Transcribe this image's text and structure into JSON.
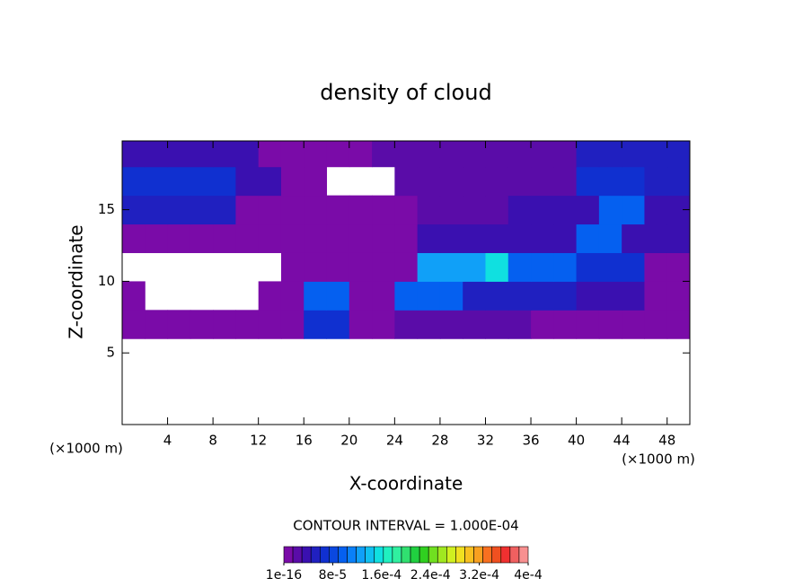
{
  "chart_data": {
    "type": "contourf",
    "title": "density of cloud",
    "x_label": "X-coordinate",
    "y_label": "Z-coordinate",
    "x_unit": "(×1000 m)",
    "note": "CONTOUR INTERVAL = 1.000E-04",
    "xlim": [
      0,
      50
    ],
    "ylim": [
      0,
      19.8
    ],
    "xticks": [
      4,
      8,
      12,
      16,
      20,
      24,
      28,
      32,
      36,
      40,
      44,
      48
    ],
    "yticks": [
      5,
      10,
      15
    ],
    "x": [
      1,
      3,
      5,
      7,
      9,
      11,
      13,
      15,
      17,
      19,
      21,
      23,
      25,
      27,
      29,
      31,
      33,
      35,
      37,
      39,
      41,
      43,
      45,
      47,
      49
    ],
    "y": [
      1,
      3,
      5,
      7,
      9,
      11,
      13,
      15,
      17,
      19
    ],
    "z": [
      [
        null,
        null,
        null,
        null,
        null,
        null,
        null,
        null,
        null,
        null,
        null,
        null,
        null,
        null,
        null,
        null,
        null,
        null,
        null,
        null,
        null,
        null,
        null,
        null,
        null
      ],
      [
        null,
        null,
        null,
        null,
        null,
        null,
        null,
        null,
        null,
        null,
        null,
        null,
        null,
        null,
        null,
        null,
        null,
        null,
        null,
        null,
        null,
        null,
        null,
        null,
        null
      ],
      [
        null,
        null,
        null,
        null,
        null,
        null,
        null,
        null,
        null,
        null,
        null,
        null,
        null,
        null,
        null,
        null,
        null,
        null,
        null,
        null,
        null,
        null,
        null,
        null,
        null
      ],
      [
        1e-06,
        1e-06,
        1e-06,
        1e-06,
        1e-06,
        1e-06,
        1e-06,
        1e-06,
        6e-05,
        6e-05,
        1e-06,
        1e-06,
        2e-05,
        2e-05,
        2e-05,
        2e-05,
        2e-05,
        2e-05,
        1e-06,
        1e-06,
        1e-06,
        1e-06,
        1e-06,
        1e-06,
        1e-06
      ],
      [
        1e-06,
        null,
        null,
        null,
        null,
        null,
        1e-06,
        1e-06,
        0.0001,
        0.0001,
        1e-06,
        1e-06,
        9e-05,
        9e-05,
        9e-05,
        5e-05,
        5e-05,
        5e-05,
        5e-05,
        5e-05,
        3e-05,
        3e-05,
        3e-05,
        1e-06,
        1e-06
      ],
      [
        null,
        null,
        null,
        null,
        null,
        null,
        null,
        1e-06,
        1e-06,
        1e-06,
        1e-06,
        1e-06,
        1e-06,
        0.00012,
        0.00012,
        0.00012,
        0.00016,
        0.0001,
        0.0001,
        0.0001,
        6e-05,
        6e-05,
        6e-05,
        1e-06,
        1e-06
      ],
      [
        1e-06,
        1e-06,
        1e-06,
        1e-06,
        1e-06,
        1e-06,
        1e-06,
        1e-06,
        1e-06,
        1e-06,
        1e-06,
        1e-06,
        1e-06,
        4e-05,
        4e-05,
        4e-05,
        4e-05,
        4e-05,
        4e-05,
        4e-05,
        0.0001,
        0.0001,
        3e-05,
        3e-05,
        3e-05
      ],
      [
        5e-05,
        5e-05,
        5e-05,
        5e-05,
        5e-05,
        1e-06,
        1e-06,
        1e-06,
        1e-06,
        1e-06,
        1e-06,
        1e-06,
        1e-06,
        2e-05,
        2e-05,
        2e-05,
        2e-05,
        4e-05,
        4e-05,
        4e-05,
        4e-05,
        0.0001,
        0.0001,
        4e-05,
        4e-05
      ],
      [
        6e-05,
        6e-05,
        6e-05,
        6e-05,
        6e-05,
        3e-05,
        3e-05,
        1e-06,
        1e-06,
        null,
        null,
        null,
        1.5e-05,
        1.5e-05,
        1.5e-05,
        1.5e-05,
        1.5e-05,
        1.5e-05,
        1.5e-05,
        1.5e-05,
        7e-05,
        7e-05,
        7e-05,
        5e-05,
        5e-05
      ],
      [
        4e-05,
        4e-05,
        4e-05,
        4e-05,
        4e-05,
        4e-05,
        1e-06,
        1e-06,
        1e-06,
        1e-06,
        1e-06,
        2e-05,
        2e-05,
        2e-05,
        2e-05,
        2e-05,
        2e-05,
        2e-05,
        2e-05,
        2e-05,
        5e-05,
        5e-05,
        5e-05,
        5e-05,
        5e-05
      ]
    ],
    "clim": [
      1e-16,
      0.0004
    ],
    "colors": [
      "#7a0ba8",
      "#5a0ca8",
      "#3a10b0",
      "#2020c0",
      "#1030d0",
      "#0a48e0",
      "#0560f0",
      "#0a80f8",
      "#10a0f8",
      "#10c0f0",
      "#10e0e0",
      "#20f0c0",
      "#30f0a0",
      "#30e070",
      "#20d040",
      "#30d020",
      "#70e020",
      "#a0e820",
      "#d0f020",
      "#f0e020",
      "#f8c020",
      "#f8a020",
      "#f87020",
      "#f05020",
      "#f03030",
      "#f06060",
      "#f89090"
    ],
    "cticks": [
      {
        "value": 1e-16,
        "label": "1e-16"
      },
      {
        "value": 8e-05,
        "label": "8e-5"
      },
      {
        "value": 0.00016,
        "label": "1.6e-4"
      },
      {
        "value": 0.00024,
        "label": "2.4e-4"
      },
      {
        "value": 0.00032,
        "label": "3.2e-4"
      },
      {
        "value": 0.0004,
        "label": "4e-4"
      }
    ]
  }
}
